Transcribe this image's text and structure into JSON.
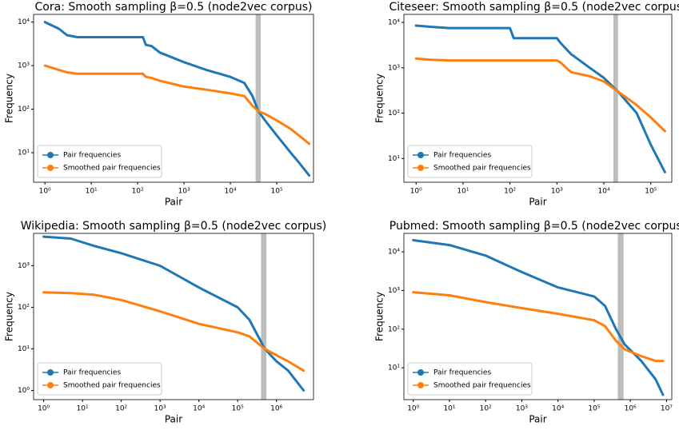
{
  "chart_data": [
    {
      "type": "line",
      "title": "Cora: Smooth sampling β=0.5 (node2vec corpus)",
      "xlabel": "Pair",
      "ylabel": "Frequency",
      "xscale": "log",
      "yscale": "log",
      "legend": "lower left",
      "span": [
        35000,
        45000
      ],
      "span_color": "#bdbdbd",
      "xlim": [
        0.57,
        620000
      ],
      "ylim": [
        2.1,
        15000
      ],
      "xticks": [
        {
          "value": 1,
          "label": "10⁰"
        },
        {
          "value": 10,
          "label": "10¹"
        },
        {
          "value": 100,
          "label": "10²"
        },
        {
          "value": 1000,
          "label": "10³"
        },
        {
          "value": 10000,
          "label": "10⁴"
        },
        {
          "value": 100000,
          "label": "10⁵"
        }
      ],
      "yticks": [
        {
          "value": 10,
          "label": "10¹"
        },
        {
          "value": 100,
          "label": "10²"
        },
        {
          "value": 1000,
          "label": "10³"
        },
        {
          "value": 10000,
          "label": "10⁴"
        }
      ],
      "x": [
        1,
        2,
        3,
        5,
        10,
        30,
        100,
        130,
        150,
        200,
        300,
        1000,
        3000,
        10000,
        20000,
        30000,
        40000,
        60000,
        100000,
        200000,
        300000,
        500000
      ],
      "series": [
        {
          "name": "Pair frequencies",
          "color": "#1f77b4",
          "values": [
            10000,
            7000,
            5000,
            4500,
            4500,
            4500,
            4500,
            4500,
            3000,
            2800,
            2000,
            1200,
            800,
            550,
            400,
            200,
            90,
            50,
            25,
            10,
            6,
            3
          ]
        },
        {
          "name": "Smoothed pair frequencies",
          "color": "#ff7f0e",
          "values": [
            1000,
            800,
            700,
            650,
            650,
            650,
            650,
            650,
            550,
            520,
            450,
            330,
            280,
            230,
            200,
            120,
            90,
            75,
            55,
            35,
            25,
            16
          ]
        }
      ]
    },
    {
      "type": "line",
      "title": "Citeseer: Smooth sampling β=0.5 (node2vec corpus)",
      "xlabel": "Pair",
      "ylabel": "Frequency",
      "xscale": "log",
      "yscale": "log",
      "legend": "lower left",
      "span": [
        16000,
        20000
      ],
      "span_color": "#bdbdbd",
      "xlim": [
        0.55,
        280000
      ],
      "ylim": [
        3,
        15000
      ],
      "xticks": [
        {
          "value": 1,
          "label": "10⁰"
        },
        {
          "value": 10,
          "label": "10¹"
        },
        {
          "value": 100,
          "label": "10²"
        },
        {
          "value": 1000,
          "label": "10³"
        },
        {
          "value": 10000,
          "label": "10⁴"
        },
        {
          "value": 100000,
          "label": "10⁵"
        }
      ],
      "yticks": [
        {
          "value": 10,
          "label": "10¹"
        },
        {
          "value": 100,
          "label": "10²"
        },
        {
          "value": 1000,
          "label": "10³"
        },
        {
          "value": 10000,
          "label": "10⁴"
        }
      ],
      "x": [
        1,
        2,
        5,
        20,
        100,
        120,
        500,
        1000,
        1200,
        2000,
        5000,
        10000,
        20000,
        50000,
        100000,
        200000
      ],
      "series": [
        {
          "name": "Pair frequencies",
          "color": "#1f77b4",
          "values": [
            8500,
            8000,
            7500,
            7500,
            7500,
            4500,
            4500,
            4500,
            3500,
            2000,
            1000,
            600,
            300,
            100,
            20,
            5
          ]
        },
        {
          "name": "Smoothed pair frequencies",
          "color": "#ff7f0e",
          "values": [
            1600,
            1500,
            1450,
            1450,
            1450,
            1450,
            1450,
            1450,
            1300,
            800,
            650,
            500,
            300,
            150,
            80,
            40
          ]
        }
      ]
    },
    {
      "type": "line",
      "title": "Wikipedia: Smooth sampling β=0.5 (node2vec corpus)",
      "xlabel": "Pair",
      "ylabel": "Frequency",
      "xscale": "log",
      "yscale": "log",
      "legend": "lower left",
      "span": [
        400000,
        550000
      ],
      "span_color": "#bdbdbd",
      "xlim": [
        0.55,
        9000000
      ],
      "ylim": [
        0.6,
        6000
      ],
      "xticks": [
        {
          "value": 1,
          "label": "10⁰"
        },
        {
          "value": 10,
          "label": "10¹"
        },
        {
          "value": 100,
          "label": "10²"
        },
        {
          "value": 1000,
          "label": "10³"
        },
        {
          "value": 10000,
          "label": "10⁴"
        },
        {
          "value": 100000,
          "label": "10⁵"
        },
        {
          "value": 1000000,
          "label": "10⁶"
        }
      ],
      "yticks": [
        {
          "value": 1,
          "label": "10⁰"
        },
        {
          "value": 10,
          "label": "10¹"
        },
        {
          "value": 100,
          "label": "10²"
        },
        {
          "value": 1000,
          "label": "10³"
        }
      ],
      "x": [
        1,
        5,
        20,
        100,
        1000,
        10000,
        100000,
        200000,
        500000,
        1000000,
        2000000,
        5000000
      ],
      "series": [
        {
          "name": "Pair frequencies",
          "color": "#1f77b4",
          "values": [
            5000,
            4500,
            3000,
            2000,
            1000,
            300,
            100,
            50,
            10,
            5,
            3,
            1
          ]
        },
        {
          "name": "Smoothed pair frequencies",
          "color": "#ff7f0e",
          "values": [
            230,
            220,
            200,
            150,
            80,
            40,
            25,
            20,
            10,
            7,
            5,
            3
          ]
        }
      ]
    },
    {
      "type": "line",
      "title": "Pubmed: Smooth sampling β=0.5 (node2vec corpus)",
      "xlabel": "Pair",
      "ylabel": "Frequency",
      "xscale": "log",
      "yscale": "log",
      "legend": "lower left",
      "span": [
        450000,
        650000
      ],
      "span_color": "#bdbdbd",
      "xlim": [
        0.55,
        14000000
      ],
      "ylim": [
        1.5,
        30000
      ],
      "xticks": [
        {
          "value": 1,
          "label": "10⁰"
        },
        {
          "value": 10,
          "label": "10¹"
        },
        {
          "value": 100,
          "label": "10²"
        },
        {
          "value": 1000,
          "label": "10³"
        },
        {
          "value": 10000,
          "label": "10⁴"
        },
        {
          "value": 100000,
          "label": "10⁵"
        },
        {
          "value": 1000000,
          "label": "10⁶"
        },
        {
          "value": 10000000,
          "label": "10⁷"
        }
      ],
      "yticks": [
        {
          "value": 10,
          "label": "10¹"
        },
        {
          "value": 100,
          "label": "10²"
        },
        {
          "value": 1000,
          "label": "10³"
        },
        {
          "value": 10000,
          "label": "10⁴"
        }
      ],
      "x": [
        1,
        10,
        100,
        1000,
        10000,
        100000,
        200000,
        400000,
        700000,
        2000000,
        5000000,
        8000000
      ],
      "series": [
        {
          "name": "Pair frequencies",
          "color": "#1f77b4",
          "values": [
            20000,
            15000,
            8000,
            3000,
            1200,
            700,
            400,
            100,
            40,
            15,
            5,
            2
          ]
        },
        {
          "name": "Smoothed pair frequencies",
          "color": "#ff7f0e",
          "values": [
            900,
            750,
            500,
            350,
            250,
            170,
            120,
            50,
            30,
            20,
            15,
            15
          ]
        }
      ]
    }
  ]
}
